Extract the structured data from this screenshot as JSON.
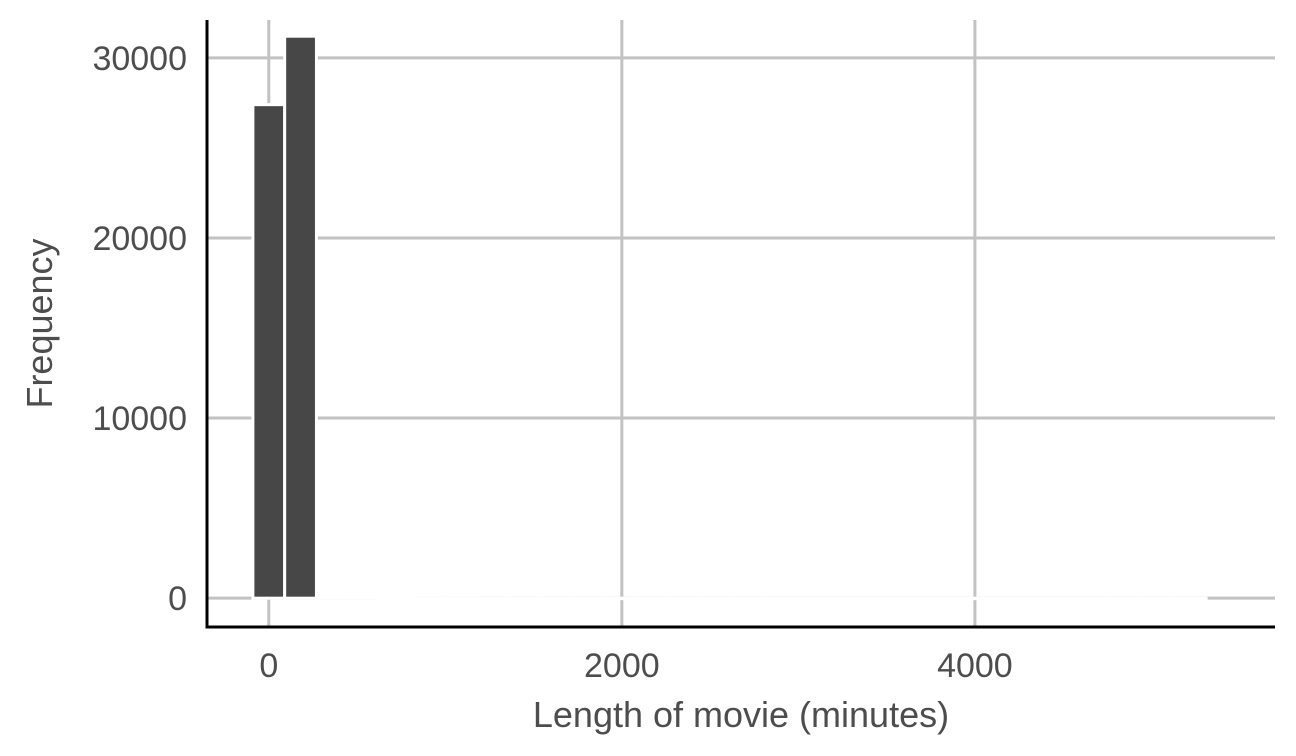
{
  "chart_data": {
    "type": "bar",
    "xlabel": "Length of movie (minutes)",
    "ylabel": "Frequency",
    "x_ticks": [
      0,
      2000,
      4000
    ],
    "y_ticks": [
      0,
      10000,
      20000,
      30000
    ],
    "x_tick_labels": [
      "0",
      "2000",
      "4000"
    ],
    "y_tick_labels": [
      "0",
      "10000",
      "20000",
      "30000"
    ],
    "xlim": [
      -350,
      5700
    ],
    "ylim": [
      -1600,
      32100
    ],
    "bin_width": 180,
    "bins": [
      {
        "start": -90,
        "end": 90,
        "count": 27400
      },
      {
        "start": 90,
        "end": 270,
        "count": 31200
      },
      {
        "start": 270,
        "end": 450,
        "count": 60
      },
      {
        "start": 450,
        "end": 630,
        "count": 20
      },
      {
        "start": 630,
        "end": 810,
        "count": 10
      },
      {
        "start": 810,
        "end": 990,
        "count": 5
      },
      {
        "start": 990,
        "end": 1170,
        "count": 3
      },
      {
        "start": 1170,
        "end": 1350,
        "count": 2
      },
      {
        "start": 1350,
        "end": 1530,
        "count": 2
      },
      {
        "start": 1530,
        "end": 1710,
        "count": 1
      },
      {
        "start": 1710,
        "end": 1890,
        "count": 1
      },
      {
        "start": 1890,
        "end": 2070,
        "count": 1
      },
      {
        "start": 2070,
        "end": 2250,
        "count": 1
      },
      {
        "start": 2250,
        "end": 2430,
        "count": 1
      },
      {
        "start": 2430,
        "end": 2610,
        "count": 1
      },
      {
        "start": 2610,
        "end": 2790,
        "count": 1
      },
      {
        "start": 2790,
        "end": 2970,
        "count": 1
      },
      {
        "start": 2970,
        "end": 3150,
        "count": 1
      },
      {
        "start": 3150,
        "end": 3330,
        "count": 1
      },
      {
        "start": 3330,
        "end": 3510,
        "count": 1
      },
      {
        "start": 3510,
        "end": 3690,
        "count": 1
      },
      {
        "start": 3690,
        "end": 3870,
        "count": 1
      },
      {
        "start": 3870,
        "end": 4050,
        "count": 1
      },
      {
        "start": 4050,
        "end": 4230,
        "count": 1
      },
      {
        "start": 4230,
        "end": 4410,
        "count": 1
      },
      {
        "start": 4410,
        "end": 4590,
        "count": 1
      },
      {
        "start": 4590,
        "end": 4770,
        "count": 1
      },
      {
        "start": 4770,
        "end": 4950,
        "count": 1
      },
      {
        "start": 4950,
        "end": 5130,
        "count": 1
      },
      {
        "start": 5130,
        "end": 5310,
        "count": 1
      }
    ],
    "bar_color": "#474747",
    "bar_outline_color": "#ffffff",
    "grid": true,
    "legend": "none"
  }
}
